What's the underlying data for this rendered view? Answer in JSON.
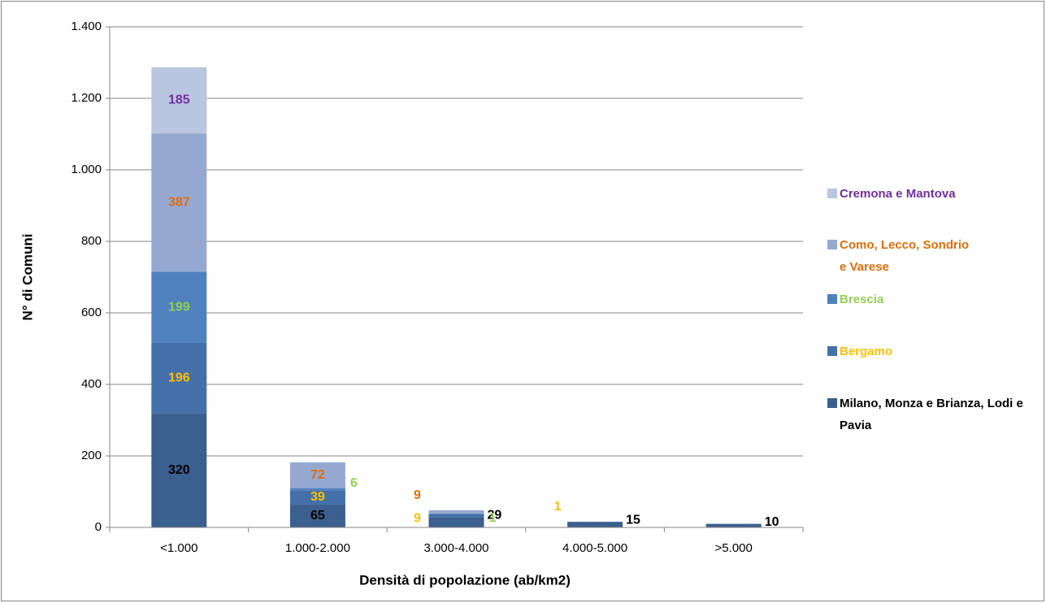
{
  "chart_data": {
    "type": "bar",
    "stacked": true,
    "x_label": "Densità di popolazione (ab/km2)",
    "y_label": "N° di Comuni",
    "categories": [
      "<1.000",
      "1.000-2.000",
      "3.000-4.000",
      "4.000-5.000",
      ">5.000"
    ],
    "series": [
      {
        "name": "Milano, Monza e Brianza, Lodi e Pavia",
        "color": "#3b5f8e",
        "label_color": "#000000",
        "values": [
          320,
          65,
          29,
          15,
          10
        ]
      },
      {
        "name": "Bergamo",
        "color": "#4471a9",
        "label_color": "#ffc000",
        "values": [
          196,
          39,
          9,
          1,
          null
        ]
      },
      {
        "name": "Brescia",
        "color": "#4f81bd",
        "label_color": "#92d050",
        "values": [
          199,
          6,
          1,
          null,
          null
        ]
      },
      {
        "name": "Como, Lecco, Sondrio e Varese",
        "color": "#95a9d0",
        "label_color": "#e36c09",
        "values": [
          387,
          72,
          9,
          null,
          null
        ]
      },
      {
        "name": "Cremona e Mantova",
        "color": "#b9c6df",
        "label_color": "#7030a0",
        "values": [
          185,
          null,
          null,
          null,
          null
        ]
      }
    ],
    "ylim": [
      0,
      1400
    ],
    "yticks": [
      0,
      200,
      400,
      600,
      800,
      {
        "value": 1000,
        "label": "1.000"
      },
      {
        "value": 1200,
        "label": "1.200"
      },
      {
        "value": 1400,
        "label": "1.400"
      }
    ],
    "grid": true,
    "legend": "right"
  }
}
